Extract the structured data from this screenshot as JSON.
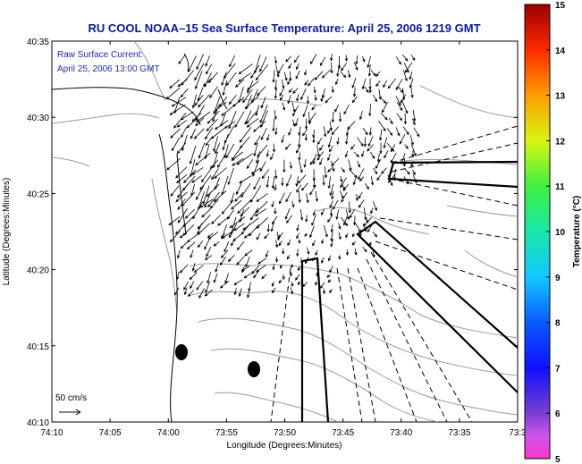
{
  "map": {
    "title": "RU COOL  NOAA–15  Sea Surface Temperature:  April 25, 2006 1219 GMT",
    "subtitle_line1": "Raw Surface Current:",
    "subtitle_line2": "April 25, 2006 13:00 GMT",
    "xlabel": "Longitude (Degrees:Minutes)",
    "ylabel": "Latitude (Degrees:Minutes)",
    "x_ticks": [
      "74:10",
      "74:05",
      "74:00",
      "73:55",
      "73:50",
      "73:45",
      "73:40",
      "73:35",
      "73:3"
    ],
    "y_ticks": [
      "40:35",
      "40:30",
      "40:25",
      "40:20",
      "40:15",
      "40:10"
    ],
    "scale_label": "50 cm/s"
  },
  "colorbar": {
    "label": "Temperature (°C)",
    "ticks": [
      "15",
      "14",
      "13",
      "12",
      "11",
      "10",
      "9",
      "8",
      "7",
      "6",
      "5"
    ],
    "min": 5,
    "max": 15
  },
  "colors": {
    "title": "#0a1aa0",
    "contour": "#9a9a9a",
    "coast": "#000000"
  }
}
